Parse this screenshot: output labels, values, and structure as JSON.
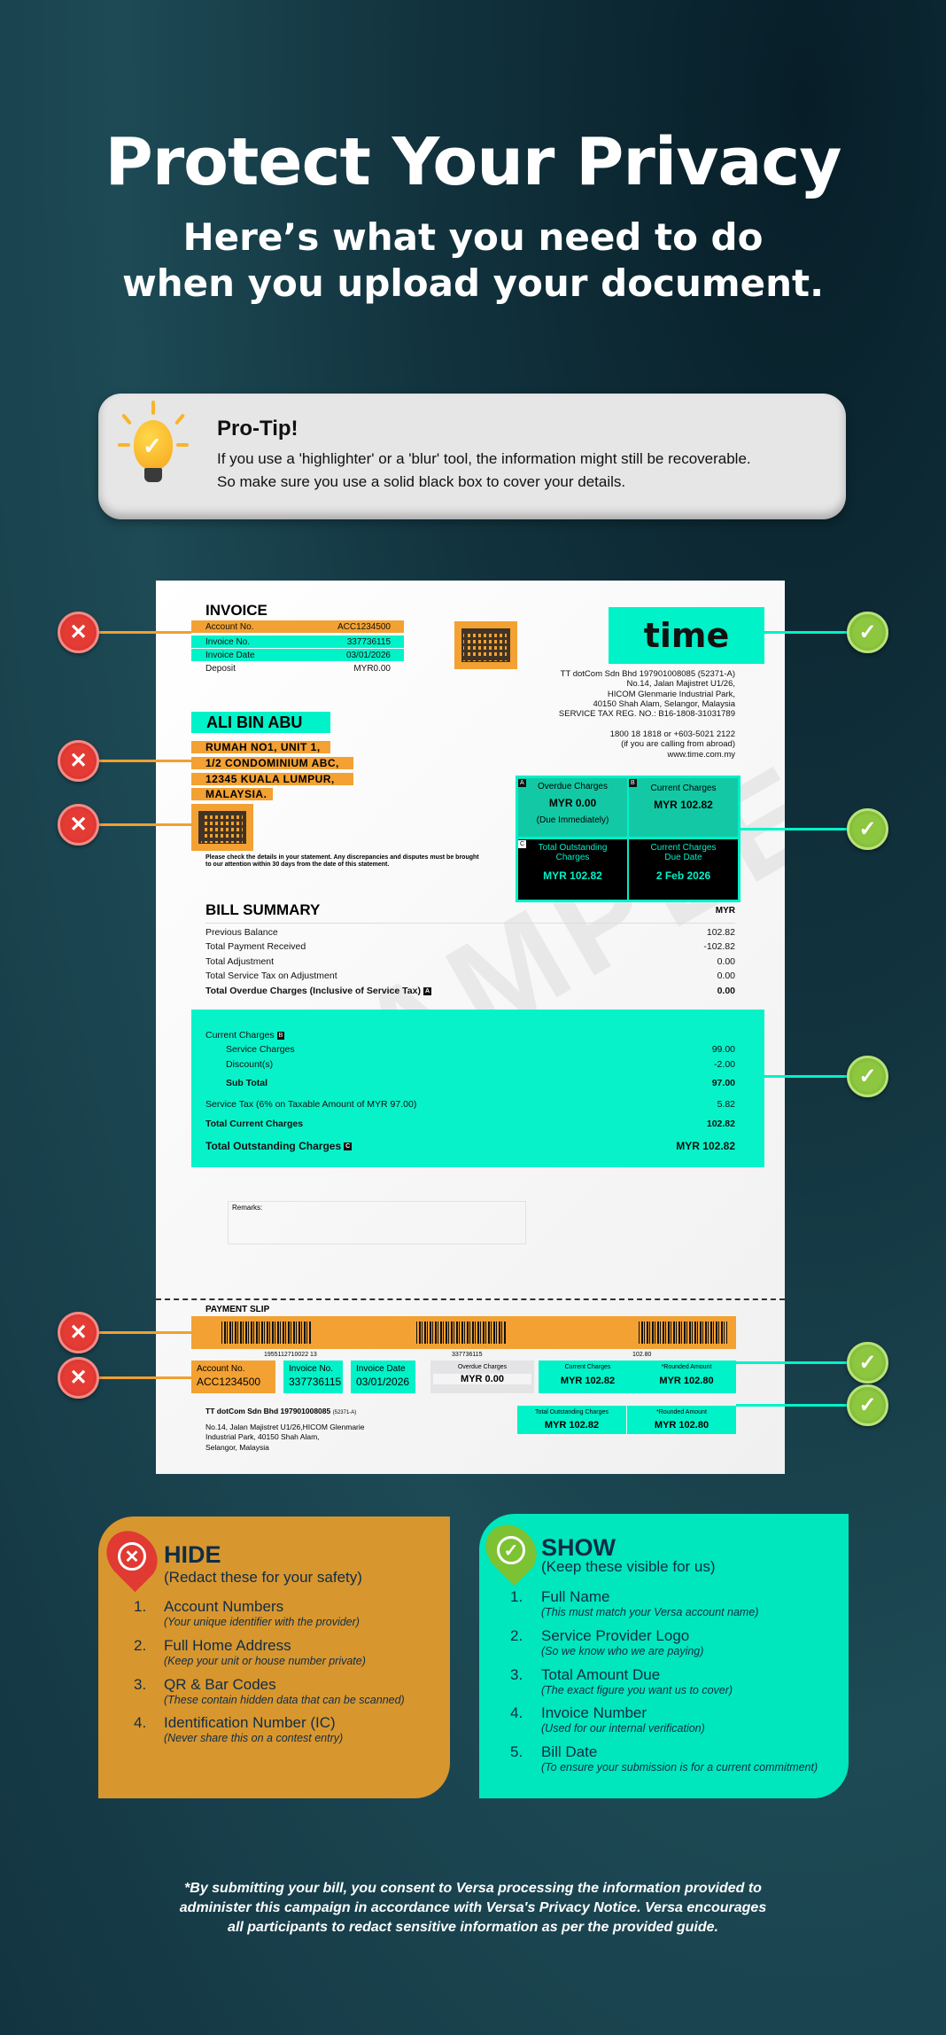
{
  "header": {
    "title": "Protect Your Privacy",
    "subtitle_line1": "Here’s what you need to do",
    "subtitle_line2": "when you upload your document."
  },
  "pro_tip": {
    "icon": "lightbulb-check-icon",
    "title": "Pro-Tip!",
    "line1": "If you use a 'highlighter' or a 'blur' tool, the information might still be recoverable.",
    "line2": "So make sure you use a solid black box to cover your details."
  },
  "invoice": {
    "heading": "INVOICE",
    "fields": [
      {
        "label": "Account No.",
        "value": "ACC1234500"
      },
      {
        "label": "Invoice No.",
        "value": "337736115"
      },
      {
        "label": "Invoice Date",
        "value": "03/01/2026"
      },
      {
        "label": "Deposit",
        "value": "MYR0.00"
      }
    ],
    "logo": "time",
    "company": [
      "TT dotCom Sdn Bhd 197901008085 (52371-A)",
      "No.14, Jalan Majistret U1/26,",
      "HICOM Glenmarie Industrial Park,",
      "40150 Shah Alam, Selangor, Malaysia",
      "SERVICE TAX REG. NO.: B16-1808-31031789"
    ],
    "contact": [
      "1800 18 1818 or +603-5021 2122",
      "(if you are calling from abroad)",
      "www.time.com.my"
    ],
    "customer_name": "ALI BIN ABU",
    "address": [
      "RUMAH NO1, UNIT 1,",
      "1/2 CONDOMINIUM ABC,",
      "12345 KUALA LUMPUR,",
      "MALAYSIA."
    ],
    "disclaimer": [
      "Please check the details in your statement. Any discrepancies and disputes must be brought",
      "to our attention within 30 days from the date of this statement."
    ],
    "summary_box": {
      "a_tag": "A",
      "overdue_label": "Overdue Charges",
      "overdue_value": "MYR 0.00",
      "overdue_note": "(Due Immediately)",
      "b_tag": "B",
      "current_label": "Current Charges",
      "current_value": "MYR 102.82",
      "c_tag": "C",
      "total_label": "Total Outstanding Charges",
      "total_value": "MYR 102.82",
      "due_label": "Current Charges Due Date",
      "due_value": "2 Feb 2026"
    },
    "bill_summary": {
      "title": "BILL SUMMARY",
      "currency": "MYR",
      "rows": [
        {
          "label": "Previous Balance",
          "value": "102.82"
        },
        {
          "label": "Total Payment Received",
          "value": "-102.82"
        },
        {
          "label": "Total Adjustment",
          "value": "0.00"
        },
        {
          "label": "Total Service Tax on Adjustment",
          "value": "0.00"
        },
        {
          "label": "Total Overdue Charges (Inclusive of Service Tax)",
          "value": "0.00"
        }
      ],
      "current": {
        "label": "Current Charges",
        "service_label": "Service Charges",
        "service_value": "99.00",
        "discount_label": "Discount(s)",
        "discount_value": "-2.00",
        "subtotal_label": "Sub Total",
        "subtotal_value": "97.00",
        "tax_label": "Service Tax (6% on Taxable Amount of MYR 97.00)",
        "tax_value": "5.82",
        "total_current_label": "Total Current Charges",
        "total_current_value": "102.82",
        "total_outstanding_label": "Total Outstanding Charges",
        "total_outstanding_value": "MYR 102.82"
      }
    },
    "watermark": "SAMPLE",
    "remarks_label": "Remarks:",
    "payment_slip": {
      "title": "PAYMENT SLIP",
      "barcode_numbers": [
        "1955112710022  13",
        "337736115",
        "102.80"
      ],
      "account_label": "Account No.",
      "account_value": "ACC1234500",
      "invoice_label": "Invoice No.",
      "invoice_value": "337736115",
      "date_label": "Invoice Date",
      "date_value": "03/01/2026",
      "overdue_label": "Overdue Charges",
      "overdue_value": "MYR 0.00",
      "current_label": "Current Charges",
      "current_value": "MYR 102.82",
      "rounded_label": "*Rounded Amount",
      "rounded_value": "MYR 102.80",
      "total_label": "Total Outstanding Charges",
      "total_value": "MYR 102.82",
      "rounded2_label": "*Rounded Amount",
      "rounded2_value": "MYR 102.80",
      "company_name": "TT dotCom Sdn Bhd 197901008085",
      "company_reg": "(52371-A)",
      "company_address": [
        "No.14, Jalan Majistret U1/26,HICOM Glenmarie",
        "Industrial Park, 40150 Shah Alam,",
        "Selangor, Malaysia"
      ]
    }
  },
  "markers": {
    "hide_icon": "x-circle-icon",
    "show_icon": "check-circle-icon",
    "hide_color": "#e53b35",
    "show_color": "#8dc63f",
    "x_glyph": "✕",
    "check_glyph": "✓"
  },
  "hide_panel": {
    "title": "HIDE",
    "subtitle": "(Redact these for your safety)",
    "color": "#d8962f",
    "items": [
      {
        "n": "1.",
        "label": "Account Numbers",
        "note": "(Your unique identifier with the provider)"
      },
      {
        "n": "2.",
        "label": "Full Home Address",
        "note": "(Keep your unit or house number private)"
      },
      {
        "n": "3.",
        "label": "QR & Bar Codes",
        "note": "(These contain hidden data that can be scanned)"
      },
      {
        "n": "4.",
        "label": "Identification Number (IC)",
        "note": "(Never share this on a contest entry)"
      }
    ]
  },
  "show_panel": {
    "title": "SHOW",
    "subtitle": "(Keep these visible for us)",
    "color": "#00e6bd",
    "items": [
      {
        "n": "1.",
        "label": "Full Name",
        "note": "(This must match your Versa account name)"
      },
      {
        "n": "2.",
        "label": "Service Provider Logo",
        "note": "(So we know who we are paying)"
      },
      {
        "n": "3.",
        "label": "Total Amount Due",
        "note": "(The exact figure you want us to cover)"
      },
      {
        "n": "4.",
        "label": "Invoice Number",
        "note": "(Used for our internal verification)"
      },
      {
        "n": "5.",
        "label": "Bill Date",
        "note": "(To ensure your submission is for a current commitment)"
      }
    ]
  },
  "footer": {
    "line1": "*By submitting your bill, you consent to Versa processing the information provided to",
    "line2": "administer this campaign in accordance with Versa's Privacy Notice. Versa encourages",
    "line3": "all participants to redact sensitive information as per the provided guide."
  }
}
